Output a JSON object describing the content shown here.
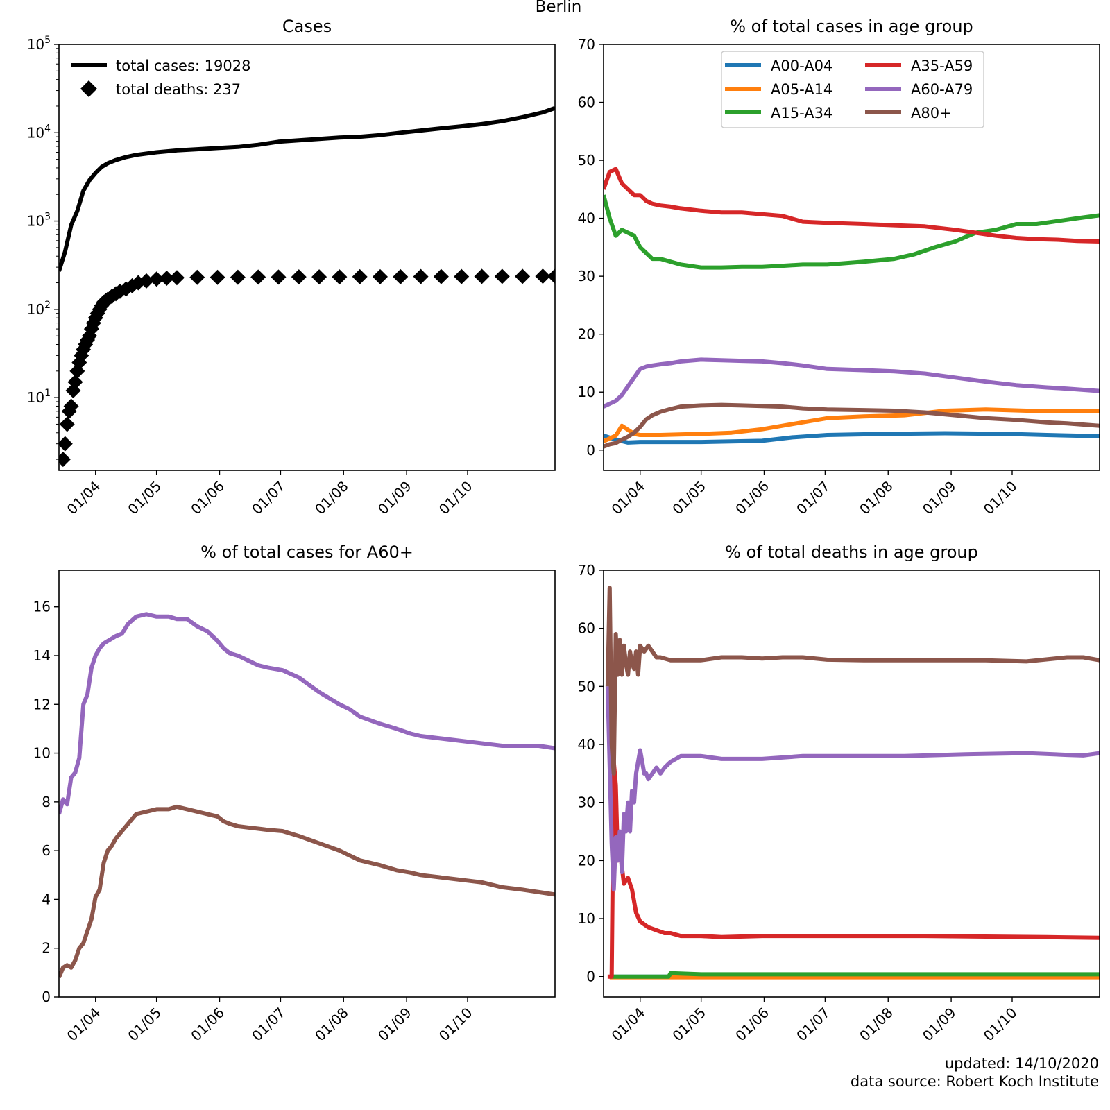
{
  "figure": {
    "title": "Berlin",
    "footer_updated": "updated: 14/10/2020",
    "footer_source": "data source: Robert Koch Institute"
  },
  "colors": {
    "A00-A04": "#1f77b4",
    "A05-A14": "#ff7f0e",
    "A15-A34": "#2ca02c",
    "A35-A59": "#d62728",
    "A60-A79": "#9467bd",
    "A80+": "#8c564b",
    "total": "#000000"
  },
  "x_ticks": [
    "01/04",
    "01/05",
    "01/06",
    "01/07",
    "01/08",
    "01/09",
    "01/10"
  ],
  "chart_data": [
    {
      "id": "cases",
      "type": "line",
      "title": "Cases",
      "yscale": "log",
      "ylim": [
        1.5,
        100000
      ],
      "yticks": [
        10,
        100,
        1000,
        10000,
        100000
      ],
      "ytick_labels": [
        [
          "10",
          "1"
        ],
        [
          "10",
          "2"
        ],
        [
          "10",
          "3"
        ],
        [
          "10",
          "4"
        ],
        [
          "10",
          "5"
        ]
      ],
      "xlim_days": [
        -18,
        226
      ],
      "legend": [
        "total cases: 19028",
        "total deaths: 237"
      ],
      "series": [
        {
          "name": "total cases",
          "marker": "line",
          "x": [
            -18,
            -15,
            -12,
            -9,
            -6,
            -3,
            0,
            3,
            6,
            10,
            15,
            20,
            30,
            40,
            50,
            60,
            70,
            80,
            90,
            100,
            110,
            120,
            130,
            140,
            150,
            160,
            170,
            180,
            190,
            200,
            210,
            220,
            226
          ],
          "y": [
            270,
            450,
            900,
            1300,
            2200,
            2900,
            3500,
            4100,
            4500,
            4900,
            5300,
            5600,
            6000,
            6300,
            6500,
            6700,
            6900,
            7300,
            7900,
            8200,
            8500,
            8800,
            9000,
            9400,
            10000,
            10600,
            11200,
            11800,
            12500,
            13500,
            15000,
            17000,
            19028
          ]
        },
        {
          "name": "total deaths",
          "marker": "diamond",
          "x": [
            -16,
            -15,
            -14,
            -13,
            -12,
            -11,
            -10,
            -9,
            -8,
            -7,
            -6,
            -5,
            -4,
            -3,
            -2,
            -1,
            0,
            1,
            2,
            3,
            4,
            5,
            6,
            8,
            10,
            12,
            15,
            18,
            21,
            25,
            30,
            35,
            40,
            50,
            60,
            70,
            80,
            90,
            100,
            110,
            120,
            130,
            140,
            150,
            160,
            170,
            180,
            190,
            200,
            210,
            220,
            226
          ],
          "y": [
            2,
            3,
            5,
            7,
            8,
            12,
            15,
            20,
            25,
            30,
            35,
            40,
            45,
            50,
            60,
            70,
            80,
            90,
            100,
            110,
            120,
            125,
            130,
            140,
            150,
            160,
            170,
            185,
            200,
            210,
            220,
            225,
            228,
            230,
            230,
            231,
            232,
            232,
            233,
            233,
            233,
            234,
            234,
            234,
            235,
            235,
            235,
            236,
            236,
            236,
            237,
            237
          ]
        }
      ]
    },
    {
      "id": "age_cases",
      "type": "line",
      "title": "% of total cases in age group",
      "ylim": [
        -3.5,
        70
      ],
      "yticks": [
        0,
        10,
        20,
        30,
        40,
        50,
        60,
        70
      ],
      "xlim_days": [
        -18,
        226
      ],
      "legend_cols": [
        [
          "A00-A04",
          "A05-A14",
          "A15-A34"
        ],
        [
          "A35-A59",
          "A60-A79",
          "A80+"
        ]
      ],
      "series": [
        {
          "name": "A00-A04",
          "x": [
            -18,
            -12,
            -6,
            0,
            15,
            30,
            60,
            75,
            92,
            120,
            150,
            180,
            200,
            226
          ],
          "y": [
            2.5,
            1.8,
            1.3,
            1.4,
            1.4,
            1.4,
            1.6,
            2.2,
            2.6,
            2.8,
            2.9,
            2.8,
            2.6,
            2.4
          ]
        },
        {
          "name": "A05-A14",
          "x": [
            -18,
            -12,
            -9,
            -6,
            -3,
            0,
            10,
            30,
            45,
            60,
            75,
            92,
            110,
            130,
            150,
            170,
            190,
            226
          ],
          "y": [
            1.5,
            2.5,
            4.2,
            3.5,
            2.8,
            2.6,
            2.6,
            2.8,
            3.0,
            3.6,
            4.5,
            5.5,
            5.8,
            6.0,
            6.8,
            7.0,
            6.8,
            6.8
          ]
        },
        {
          "name": "A15-A34",
          "x": [
            -18,
            -15,
            -12,
            -9,
            -6,
            -3,
            0,
            3,
            6,
            10,
            20,
            30,
            40,
            50,
            60,
            70,
            80,
            92,
            110,
            125,
            135,
            145,
            155,
            165,
            175,
            185,
            195,
            205,
            215,
            226
          ],
          "y": [
            44,
            40,
            37,
            38,
            37.5,
            37,
            35,
            34,
            33,
            33,
            32,
            31.5,
            31.5,
            31.6,
            31.6,
            31.8,
            32,
            32,
            32.5,
            33,
            33.8,
            35,
            36,
            37.5,
            38,
            39,
            39,
            39.5,
            40,
            40.5
          ]
        },
        {
          "name": "A35-A59",
          "x": [
            -18,
            -15,
            -12,
            -9,
            -6,
            -3,
            0,
            3,
            6,
            10,
            15,
            20,
            30,
            40,
            50,
            60,
            70,
            80,
            92,
            110,
            125,
            140,
            155,
            165,
            175,
            185,
            195,
            205,
            215,
            226
          ],
          "y": [
            45,
            48,
            48.5,
            46,
            45,
            44,
            44,
            43,
            42.5,
            42.2,
            42,
            41.7,
            41.3,
            41,
            41,
            40.7,
            40.4,
            39.4,
            39.2,
            39,
            38.8,
            38.6,
            38,
            37.5,
            37,
            36.6,
            36.4,
            36.3,
            36.1,
            36
          ]
        },
        {
          "name": "A60-A79",
          "x": [
            -18,
            -15,
            -12,
            -9,
            -6,
            -3,
            0,
            3,
            6,
            10,
            15,
            20,
            30,
            40,
            50,
            60,
            70,
            80,
            92,
            110,
            125,
            140,
            155,
            170,
            185,
            200,
            210,
            226
          ],
          "y": [
            7.5,
            8,
            8.5,
            9.5,
            11,
            12.5,
            14,
            14.4,
            14.6,
            14.8,
            15,
            15.3,
            15.6,
            15.5,
            15.4,
            15.3,
            15,
            14.6,
            14,
            13.8,
            13.6,
            13.2,
            12.5,
            11.8,
            11.2,
            10.8,
            10.6,
            10.2
          ]
        },
        {
          "name": "A80+",
          "x": [
            -18,
            -15,
            -12,
            -9,
            -6,
            -3,
            0,
            3,
            6,
            10,
            15,
            20,
            30,
            40,
            50,
            60,
            70,
            80,
            92,
            110,
            125,
            140,
            155,
            170,
            185,
            200,
            210,
            226
          ],
          "y": [
            0.6,
            1.0,
            1.2,
            1.8,
            2.3,
            3.0,
            4.0,
            5.3,
            6.0,
            6.6,
            7.1,
            7.5,
            7.7,
            7.8,
            7.7,
            7.6,
            7.5,
            7.2,
            7.0,
            6.9,
            6.8,
            6.5,
            6.0,
            5.5,
            5.2,
            4.8,
            4.6,
            4.2
          ]
        }
      ]
    },
    {
      "id": "a60plus",
      "type": "line",
      "title": "% of total cases for A60+",
      "ylim": [
        0,
        17.5
      ],
      "yticks": [
        0,
        2,
        4,
        6,
        8,
        10,
        12,
        14,
        16
      ],
      "xlim_days": [
        -18,
        226
      ],
      "series": [
        {
          "name": "A60-A79",
          "x": [
            -18,
            -16,
            -14,
            -12,
            -10,
            -8,
            -6,
            -4,
            -2,
            0,
            2,
            4,
            6,
            8,
            10,
            13,
            16,
            20,
            25,
            30,
            36,
            40,
            45,
            50,
            55,
            60,
            63,
            66,
            70,
            75,
            80,
            85,
            92,
            100,
            110,
            120,
            125,
            130,
            140,
            148,
            155,
            160,
            170,
            180,
            190,
            200,
            210,
            218,
            226
          ],
          "y": [
            7.5,
            8.1,
            7.9,
            9,
            9.2,
            9.8,
            12,
            12.4,
            13.5,
            14,
            14.3,
            14.5,
            14.6,
            14.7,
            14.8,
            14.9,
            15.3,
            15.6,
            15.7,
            15.6,
            15.6,
            15.5,
            15.5,
            15.2,
            15,
            14.6,
            14.3,
            14.1,
            14,
            13.8,
            13.6,
            13.5,
            13.4,
            13.1,
            12.5,
            12.0,
            11.8,
            11.5,
            11.2,
            11.0,
            10.8,
            10.7,
            10.6,
            10.5,
            10.4,
            10.3,
            10.3,
            10.3,
            10.2
          ]
        },
        {
          "name": "A80+",
          "x": [
            -18,
            -16,
            -14,
            -12,
            -10,
            -8,
            -6,
            -4,
            -2,
            0,
            2,
            4,
            6,
            8,
            10,
            13,
            16,
            20,
            25,
            30,
            36,
            40,
            45,
            50,
            55,
            60,
            63,
            66,
            70,
            75,
            80,
            85,
            92,
            100,
            110,
            120,
            125,
            130,
            140,
            148,
            155,
            160,
            170,
            180,
            190,
            200,
            210,
            218,
            226
          ],
          "y": [
            0.8,
            1.2,
            1.3,
            1.2,
            1.5,
            2.0,
            2.2,
            2.7,
            3.2,
            4.1,
            4.4,
            5.5,
            6.0,
            6.2,
            6.5,
            6.8,
            7.1,
            7.5,
            7.6,
            7.7,
            7.7,
            7.8,
            7.7,
            7.6,
            7.5,
            7.4,
            7.2,
            7.1,
            7.0,
            6.95,
            6.9,
            6.85,
            6.8,
            6.6,
            6.3,
            6.0,
            5.8,
            5.6,
            5.4,
            5.2,
            5.1,
            5.0,
            4.9,
            4.8,
            4.7,
            4.5,
            4.4,
            4.3,
            4.2
          ]
        }
      ]
    },
    {
      "id": "age_deaths",
      "type": "line",
      "title": "% of total deaths in age group",
      "ylim": [
        -3.5,
        70
      ],
      "yticks": [
        0,
        10,
        20,
        30,
        40,
        50,
        60,
        70
      ],
      "xlim_days": [
        -18,
        226
      ],
      "series": [
        {
          "name": "A00-A04",
          "x": [
            -15,
            226
          ],
          "y": [
            0,
            0
          ]
        },
        {
          "name": "A05-A14",
          "x": [
            -15,
            226
          ],
          "y": [
            -0.1,
            -0.1
          ]
        },
        {
          "name": "A15-A34",
          "x": [
            -15,
            14,
            15,
            30,
            60,
            226
          ],
          "y": [
            0,
            0,
            0.6,
            0.4,
            0.4,
            0.4
          ]
        },
        {
          "name": "A35-A59",
          "x": [
            -16,
            -14,
            -13,
            -12,
            -11,
            -10,
            -8,
            -6,
            -4,
            -2,
            0,
            2,
            4,
            8,
            12,
            15,
            20,
            30,
            40,
            60,
            75,
            92,
            110,
            140,
            170,
            200,
            226
          ],
          "y": [
            0,
            0,
            37,
            33,
            20,
            22,
            16,
            17,
            15,
            11,
            9.5,
            9,
            8.5,
            8,
            7.5,
            7.5,
            7,
            7,
            6.8,
            7,
            7,
            7,
            7,
            7,
            6.9,
            6.8,
            6.7
          ]
        },
        {
          "name": "A60-A79",
          "x": [
            -16,
            -14,
            -13,
            -12,
            -11,
            -10,
            -9,
            -8,
            -7,
            -6,
            -5,
            -4,
            -3,
            -2,
            -1,
            0,
            1,
            2,
            3,
            4,
            6,
            8,
            10,
            12,
            15,
            20,
            30,
            40,
            60,
            80,
            100,
            130,
            160,
            190,
            210,
            218,
            226
          ],
          "y": [
            50,
            23,
            15,
            24,
            20,
            25,
            18,
            28,
            25,
            30,
            25,
            32,
            30,
            35,
            37,
            39,
            37,
            35,
            35,
            34,
            35,
            36,
            35,
            36,
            37,
            38,
            38,
            37.5,
            37.5,
            38,
            38,
            38,
            38.3,
            38.5,
            38.2,
            38.1,
            38.5
          ]
        },
        {
          "name": "A80+",
          "x": [
            -16,
            -15,
            -14,
            -13,
            -12,
            -11,
            -10,
            -9,
            -8,
            -7,
            -6,
            -5,
            -4,
            -3,
            -2,
            -1,
            0,
            2,
            4,
            6,
            8,
            10,
            15,
            20,
            30,
            40,
            50,
            60,
            70,
            80,
            92,
            110,
            130,
            150,
            170,
            190,
            210,
            218,
            226
          ],
          "y": [
            50,
            67,
            40,
            35,
            59,
            52,
            58,
            52,
            57,
            54,
            52,
            56,
            54,
            53,
            56,
            52,
            57,
            56,
            57,
            56,
            55,
            55,
            54.5,
            54.5,
            54.5,
            55,
            55,
            54.8,
            55,
            55,
            54.6,
            54.5,
            54.5,
            54.5,
            54.5,
            54.3,
            55,
            55,
            54.5
          ]
        }
      ]
    }
  ]
}
